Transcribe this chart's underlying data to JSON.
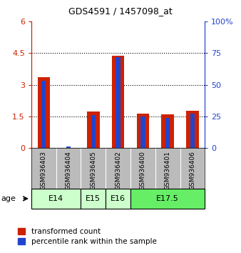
{
  "title": "GDS4591 / 1457098_at",
  "samples": [
    "GSM936403",
    "GSM936404",
    "GSM936405",
    "GSM936402",
    "GSM936400",
    "GSM936401",
    "GSM936406"
  ],
  "transformed_count": [
    3.35,
    0.0,
    1.72,
    4.37,
    1.62,
    1.58,
    1.78
  ],
  "percentile_rank": [
    3.18,
    0.08,
    1.56,
    4.32,
    1.5,
    1.42,
    1.63
  ],
  "age_groups": [
    {
      "label": "E14",
      "indices": [
        0,
        1
      ],
      "color": "#ccffcc"
    },
    {
      "label": "E15",
      "indices": [
        2
      ],
      "color": "#ccffcc"
    },
    {
      "label": "E16",
      "indices": [
        3
      ],
      "color": "#ccffcc"
    },
    {
      "label": "E17.5",
      "indices": [
        4,
        5,
        6
      ],
      "color": "#66ee66"
    }
  ],
  "ylim_left": [
    0,
    6
  ],
  "yticks_left": [
    0,
    1.5,
    3.0,
    4.5,
    6
  ],
  "yticklabels_left": [
    "0",
    "1.5",
    "3",
    "4.5",
    "6"
  ],
  "ylim_right": [
    0,
    100
  ],
  "yticks_right": [
    0,
    25,
    50,
    75,
    100
  ],
  "yticklabels_right": [
    "0",
    "25",
    "50",
    "75",
    "100%"
  ],
  "bar_color_red": "#cc2200",
  "bar_color_blue": "#2244cc",
  "bar_width": 0.5,
  "blue_bar_width": 0.18,
  "bg_color_plot": "#ffffff",
  "bg_color_sample": "#bbbbbb",
  "legend_label_red": "transformed count",
  "legend_label_blue": "percentile rank within the sample",
  "age_label": "age",
  "dotted_yticks": [
    1.5,
    3.0,
    4.5
  ]
}
